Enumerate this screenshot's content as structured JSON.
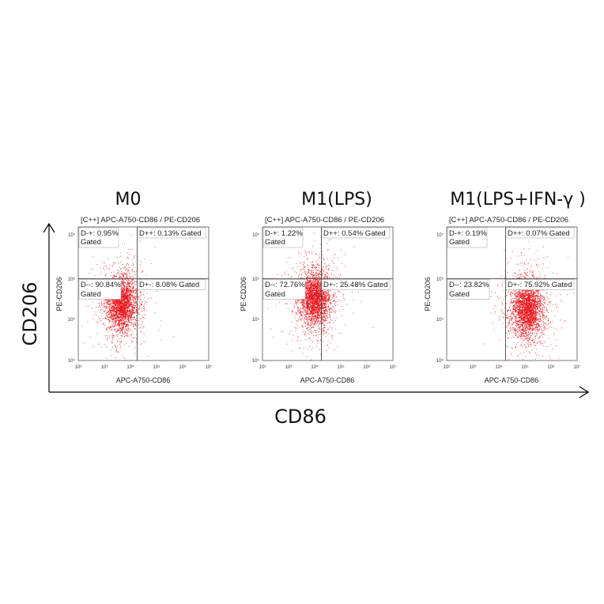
{
  "figure": {
    "x_axis_label": "CD86",
    "y_axis_label": "CD206"
  },
  "chart_data": [
    {
      "type": "scatter",
      "title": "M0",
      "gate_title": "[C++] APC-A750-CD86 / PE-CD206",
      "xlabel": "APC-A750-CD86",
      "ylabel": "PE-CD206",
      "x_scale": "log",
      "y_scale": "log",
      "xlim": [
        100,
        10000000
      ],
      "ylim": [
        10000,
        10000000
      ],
      "x_ticks": [
        "10²",
        "10³",
        "10⁴",
        "10⁵",
        "10⁶",
        "10⁷"
      ],
      "y_ticks": [
        "10⁴",
        "10⁵",
        "10⁶",
        "10⁷"
      ],
      "quadrant_gates": {
        "x": 20000,
        "y": 1000000
      },
      "quadrants": [
        {
          "name": "D-+",
          "label": "D-+: 0.95%",
          "label2": "Gated",
          "percent": 0.95
        },
        {
          "name": "D++",
          "label": "D++: 0.13% Gated",
          "percent": 0.13
        },
        {
          "name": "D--",
          "label": "D--: 90.84%",
          "label2": "Gated",
          "percent": 90.84
        },
        {
          "name": "D+-",
          "label": "D+-: 8.08% Gated",
          "percent": 8.08
        }
      ],
      "population": {
        "x_center": 4500,
        "y_center": 200000,
        "color": "#e8141b"
      }
    },
    {
      "type": "scatter",
      "title": "M1(LPS)",
      "gate_title": "[C++] APC-A750-CD86 / PE-CD206",
      "xlabel": "APC-A750-CD86",
      "ylabel": "PE-CD206",
      "x_scale": "log",
      "y_scale": "log",
      "xlim": [
        100,
        10000000
      ],
      "ylim": [
        10000,
        10000000
      ],
      "x_ticks": [
        "10²",
        "10³",
        "10⁴",
        "10⁵",
        "10⁶",
        "10⁷"
      ],
      "y_ticks": [
        "10⁴",
        "10⁵",
        "10⁶",
        "10⁷"
      ],
      "quadrant_gates": {
        "x": 20000,
        "y": 1000000
      },
      "quadrants": [
        {
          "name": "D-+",
          "label": "D-+: 1.22%",
          "label2": "Gated",
          "percent": 1.22
        },
        {
          "name": "D++",
          "label": "D++: 0.54% Gated",
          "percent": 0.54
        },
        {
          "name": "D--",
          "label": "D--: 72.76%",
          "label2": "Gated",
          "percent": 72.76
        },
        {
          "name": "D+-",
          "label": "D+-: 25.48% Gated",
          "percent": 25.48
        }
      ],
      "population": {
        "x_center": 10000,
        "y_center": 250000,
        "color": "#e8141b"
      }
    },
    {
      "type": "scatter",
      "title": "M1(LPS+IFN-γ )",
      "gate_title": "[C++] APC-A750-CD86 / PE-CD206",
      "xlabel": "APC-A750-CD86",
      "ylabel": "PE-CD206",
      "x_scale": "log",
      "y_scale": "log",
      "xlim": [
        100,
        10000000
      ],
      "ylim": [
        10000,
        10000000
      ],
      "x_ticks": [
        "10²",
        "10³",
        "10⁴",
        "10⁵",
        "10⁶",
        "10⁷"
      ],
      "y_ticks": [
        "10⁴",
        "10⁵",
        "10⁶",
        "10⁷"
      ],
      "quadrant_gates": {
        "x": 20000,
        "y": 1000000
      },
      "quadrants": [
        {
          "name": "D-+",
          "label": "D-+: 0.19%",
          "label2": "Gated",
          "percent": 0.19
        },
        {
          "name": "D++",
          "label": "D++: 0.07% Gated",
          "percent": 0.07
        },
        {
          "name": "D--",
          "label": "D--: 23.82%",
          "label2": "Gated",
          "percent": 23.82
        },
        {
          "name": "D+-",
          "label": "D+-: 75.92% Gated",
          "percent": 75.92
        }
      ],
      "population": {
        "x_center": 120000,
        "y_center": 150000,
        "color": "#e8141b"
      }
    }
  ]
}
